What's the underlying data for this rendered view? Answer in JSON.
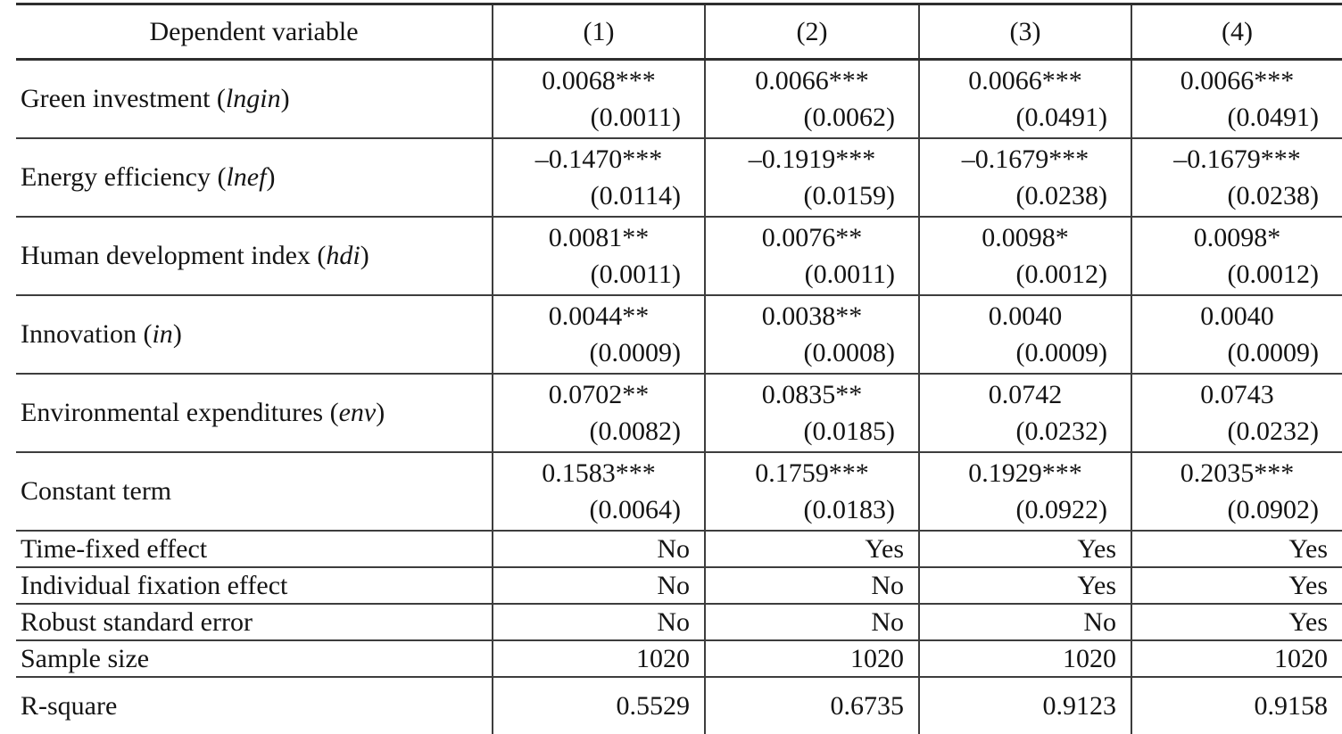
{
  "table": {
    "header": {
      "label": "Dependent variable",
      "columns": [
        "(1)",
        "(2)",
        "(3)",
        "(4)"
      ]
    },
    "coef_rows": [
      {
        "prefix": "Green investment (",
        "code": "lngin",
        "suffix": ")",
        "cells": [
          {
            "coef": "0.0068***",
            "se": "(0.0011)"
          },
          {
            "coef": "0.0066***",
            "se": "(0.0062)"
          },
          {
            "coef": "0.0066***",
            "se": "(0.0491)"
          },
          {
            "coef": "0.0066***",
            "se": "(0.0491)"
          }
        ]
      },
      {
        "prefix": "Energy efficiency (",
        "code": "lnef",
        "suffix": ")",
        "cells": [
          {
            "coef": "–0.1470***",
            "se": "(0.0114)"
          },
          {
            "coef": "–0.1919***",
            "se": "(0.0159)"
          },
          {
            "coef": "–0.1679***",
            "se": "(0.0238)"
          },
          {
            "coef": "–0.1679***",
            "se": "(0.0238)"
          }
        ]
      },
      {
        "prefix": "Human development index (",
        "code": "hdi",
        "suffix": ")",
        "cells": [
          {
            "coef": "0.0081**",
            "se": "(0.0011)"
          },
          {
            "coef": "0.0076**",
            "se": "(0.0011)"
          },
          {
            "coef": "0.0098*",
            "se": "(0.0012)"
          },
          {
            "coef": "0.0098*",
            "se": "(0.0012)"
          }
        ]
      },
      {
        "prefix": "Innovation (",
        "code": "in",
        "suffix": ")",
        "cells": [
          {
            "coef": "0.0044**",
            "se": "(0.0009)"
          },
          {
            "coef": "0.0038**",
            "se": "(0.0008)"
          },
          {
            "coef": "0.0040",
            "se": "(0.0009)"
          },
          {
            "coef": "0.0040",
            "se": "(0.0009)"
          }
        ]
      },
      {
        "prefix": "Environmental expenditures (",
        "code": "env",
        "suffix": ")",
        "cells": [
          {
            "coef": "0.0702**",
            "se": "(0.0082)"
          },
          {
            "coef": "0.0835**",
            "se": "(0.0185)"
          },
          {
            "coef": "0.0742",
            "se": "(0.0232)"
          },
          {
            "coef": "0.0743",
            "se": "(0.0232)"
          }
        ]
      },
      {
        "prefix": "Constant term",
        "code": "",
        "suffix": "",
        "cells": [
          {
            "coef": "0.1583***",
            "se": "(0.0064)"
          },
          {
            "coef": "0.1759***",
            "se": "(0.0183)"
          },
          {
            "coef": "0.1929***",
            "se": "(0.0922)"
          },
          {
            "coef": "0.2035***",
            "se": "(0.0902)"
          }
        ]
      }
    ],
    "info_rows": [
      {
        "label": "Time-fixed effect",
        "values": [
          "No",
          "Yes",
          "Yes",
          "Yes"
        ]
      },
      {
        "label": "Individual fixation effect",
        "values": [
          "No",
          "No",
          "Yes",
          "Yes"
        ]
      },
      {
        "label": "Robust standard error",
        "values": [
          "No",
          "No",
          "No",
          "Yes"
        ]
      },
      {
        "label": "Sample size",
        "values": [
          "1020",
          "1020",
          "1020",
          "1020"
        ]
      },
      {
        "label": "R-square",
        "values": [
          "0.5529",
          "0.6735",
          "0.9123",
          "0.9158"
        ]
      }
    ]
  }
}
